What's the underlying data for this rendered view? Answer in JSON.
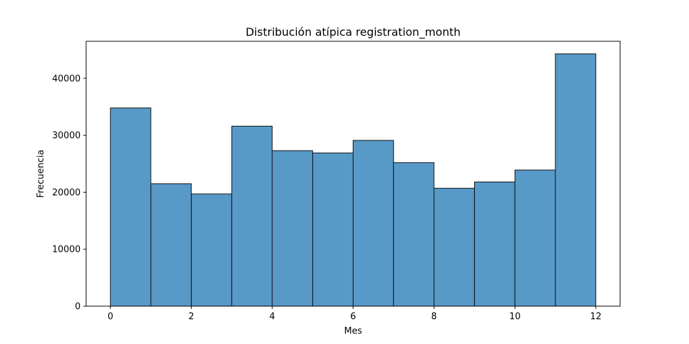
{
  "chart_data": {
    "type": "bar",
    "title": "Distribución atípica registration_month",
    "xlabel": "Mes",
    "ylabel": "Frecuencia",
    "bin_edges": [
      0,
      1,
      2,
      3,
      4,
      5,
      6,
      7,
      8,
      9,
      10,
      11,
      12
    ],
    "values": [
      34800,
      21500,
      19700,
      31600,
      27300,
      26900,
      29100,
      25200,
      20700,
      21800,
      23900,
      44300
    ],
    "xlim": [
      -0.6,
      12.6
    ],
    "ylim": [
      0,
      46500
    ],
    "xticks": [
      0,
      2,
      4,
      6,
      8,
      10,
      12
    ],
    "yticks": [
      0,
      10000,
      20000,
      30000,
      40000
    ],
    "grid": false,
    "colors": {
      "bar_fill": "#5799c7",
      "bar_edge": "#111111",
      "axis": "#000000"
    }
  }
}
